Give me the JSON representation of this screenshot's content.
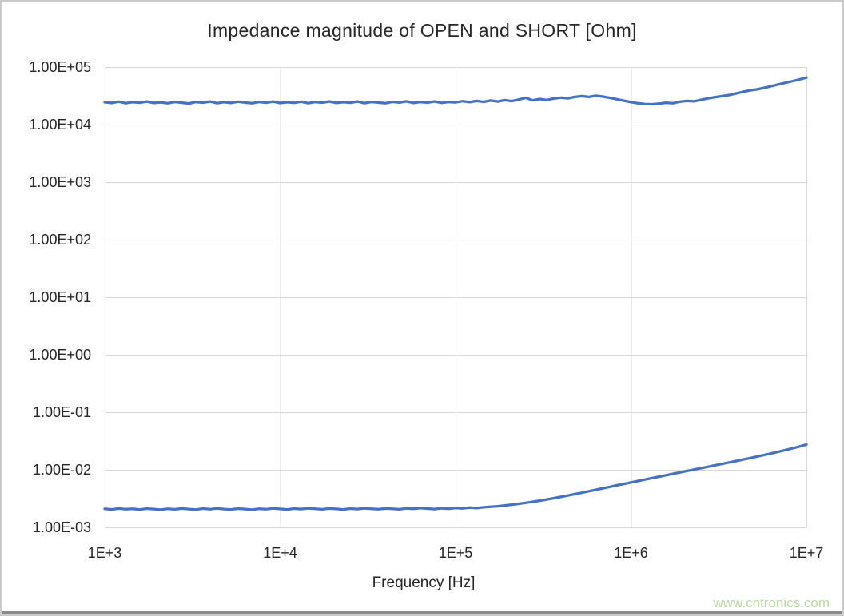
{
  "window": {
    "background": "#FFFFFF",
    "border_color": "#C9C9C9",
    "bottom_bar_color": "#8A8A8A"
  },
  "watermark": {
    "text": "www.cntronics.com",
    "color": "#B5DB9E"
  },
  "colors": {
    "series_line": "#4472C4",
    "gridline": "#D9D9D9",
    "title_text": "#262626",
    "tick_text": "#262626"
  },
  "chart_data": {
    "type": "line",
    "title": "Impedance magnitude of OPEN and SHORT [Ohm]",
    "xlabel": "Frequency [Hz]",
    "ylabel": "",
    "x_scale": "log",
    "y_scale": "log",
    "x_log_range": [
      3,
      7
    ],
    "y_log_range": [
      -3,
      5
    ],
    "x_tick_labels": [
      "1E+3",
      "1E+4",
      "1E+5",
      "1E+6",
      "1E+7"
    ],
    "y_tick_labels": [
      "1.00E+05",
      "1.00E+04",
      "1.00E+03",
      "1.00E+02",
      "1.00E+01",
      "1.00E+00",
      "1.00E-01",
      "1.00E-02",
      "1.00E-03"
    ],
    "grid": true,
    "legend": "none",
    "series": [
      {
        "name": "OPEN",
        "log_f_start": 3.0,
        "log_f_step": 0.04,
        "value_scale": 10000,
        "values": [
          2.45,
          2.38,
          2.5,
          2.36,
          2.46,
          2.4,
          2.52,
          2.38,
          2.44,
          2.35,
          2.48,
          2.4,
          2.33,
          2.47,
          2.41,
          2.52,
          2.36,
          2.46,
          2.38,
          2.5,
          2.42,
          2.35,
          2.48,
          2.4,
          2.52,
          2.37,
          2.45,
          2.39,
          2.5,
          2.36,
          2.47,
          2.41,
          2.53,
          2.38,
          2.46,
          2.4,
          2.52,
          2.36,
          2.48,
          2.42,
          2.35,
          2.49,
          2.42,
          2.54,
          2.38,
          2.47,
          2.41,
          2.53,
          2.39,
          2.48,
          2.43,
          2.55,
          2.46,
          2.58,
          2.49,
          2.62,
          2.52,
          2.66,
          2.56,
          2.72,
          2.92,
          2.64,
          2.78,
          2.68,
          2.84,
          2.94,
          2.86,
          3.02,
          3.12,
          3.02,
          3.18,
          3.06,
          2.92,
          2.76,
          2.6,
          2.46,
          2.35,
          2.28,
          2.26,
          2.31,
          2.4,
          2.36,
          2.5,
          2.58,
          2.54,
          2.7,
          2.86,
          3.0,
          3.12,
          3.26,
          3.48,
          3.72,
          3.94,
          4.1,
          4.35,
          4.65,
          5.0,
          5.32,
          5.68,
          6.08,
          6.55
        ]
      },
      {
        "name": "SHORT",
        "log_f_start": 3.0,
        "log_f_step": 0.04,
        "value_scale": 0.001,
        "values": [
          2.1,
          2.05,
          2.13,
          2.07,
          2.11,
          2.04,
          2.12,
          2.08,
          2.03,
          2.11,
          2.06,
          2.13,
          2.08,
          2.04,
          2.12,
          2.07,
          2.14,
          2.08,
          2.05,
          2.12,
          2.08,
          2.03,
          2.11,
          2.07,
          2.14,
          2.09,
          2.05,
          2.12,
          2.08,
          2.15,
          2.1,
          2.06,
          2.13,
          2.09,
          2.05,
          2.12,
          2.08,
          2.15,
          2.11,
          2.07,
          2.13,
          2.1,
          2.06,
          2.14,
          2.1,
          2.16,
          2.12,
          2.08,
          2.15,
          2.11,
          2.17,
          2.14,
          2.2,
          2.16,
          2.23,
          2.28,
          2.33,
          2.4,
          2.48,
          2.57,
          2.67,
          2.78,
          2.91,
          3.05,
          3.21,
          3.38,
          3.57,
          3.78,
          4.0,
          4.24,
          4.5,
          4.77,
          5.06,
          5.37,
          5.7,
          6.04,
          6.4,
          6.78,
          7.18,
          7.6,
          8.05,
          8.52,
          9.02,
          9.55,
          10.1,
          10.7,
          11.3,
          12.0,
          12.7,
          13.4,
          14.2,
          15.1,
          16.0,
          17.0,
          18.1,
          19.3,
          20.6,
          22.0,
          23.6,
          25.4,
          27.5
        ]
      }
    ]
  }
}
